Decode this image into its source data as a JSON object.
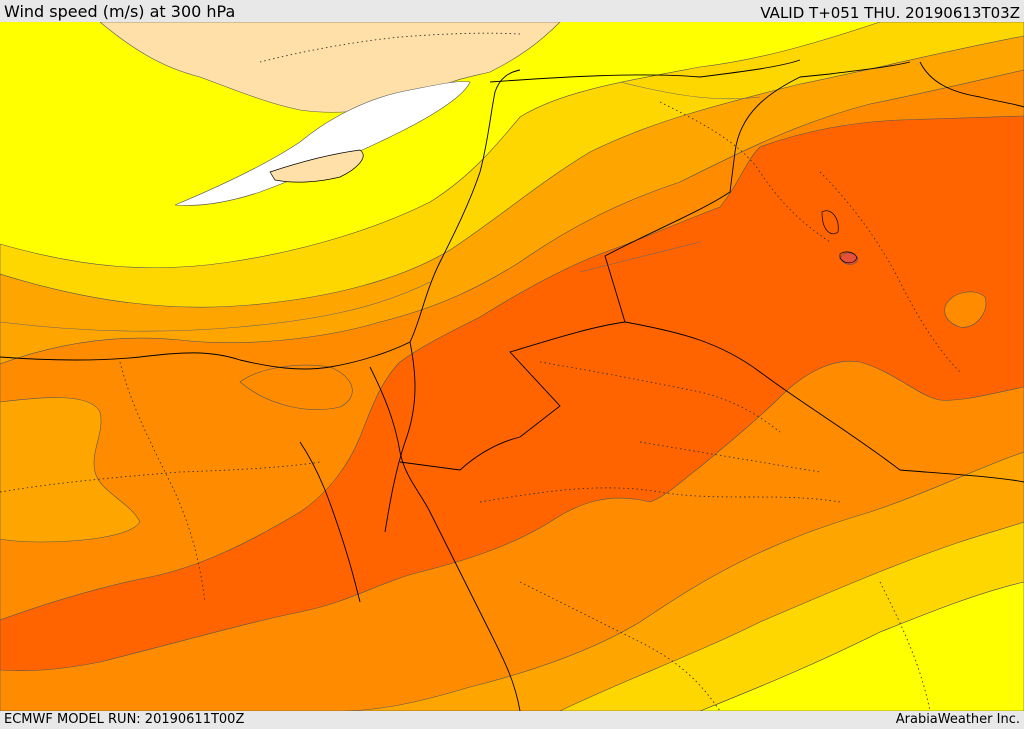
{
  "header": {
    "title": "Wind speed (m/s) at 300 hPa",
    "valid_time": "VALID T+051 THU. 20190613T03Z"
  },
  "footer": {
    "model_run": "ECMWF MODEL RUN: 20190611T00Z",
    "credit": "ArabiaWeather Inc."
  },
  "map": {
    "field": "Wind speed",
    "units": "m/s",
    "level": "300 hPa",
    "band_colors": [
      "#ffffff",
      "#ffff00",
      "#ffd700",
      "#ffa500",
      "#ff8c00",
      "#ff6400",
      "#e84a3a"
    ],
    "land_outside_color": "#ffe0a8"
  }
}
